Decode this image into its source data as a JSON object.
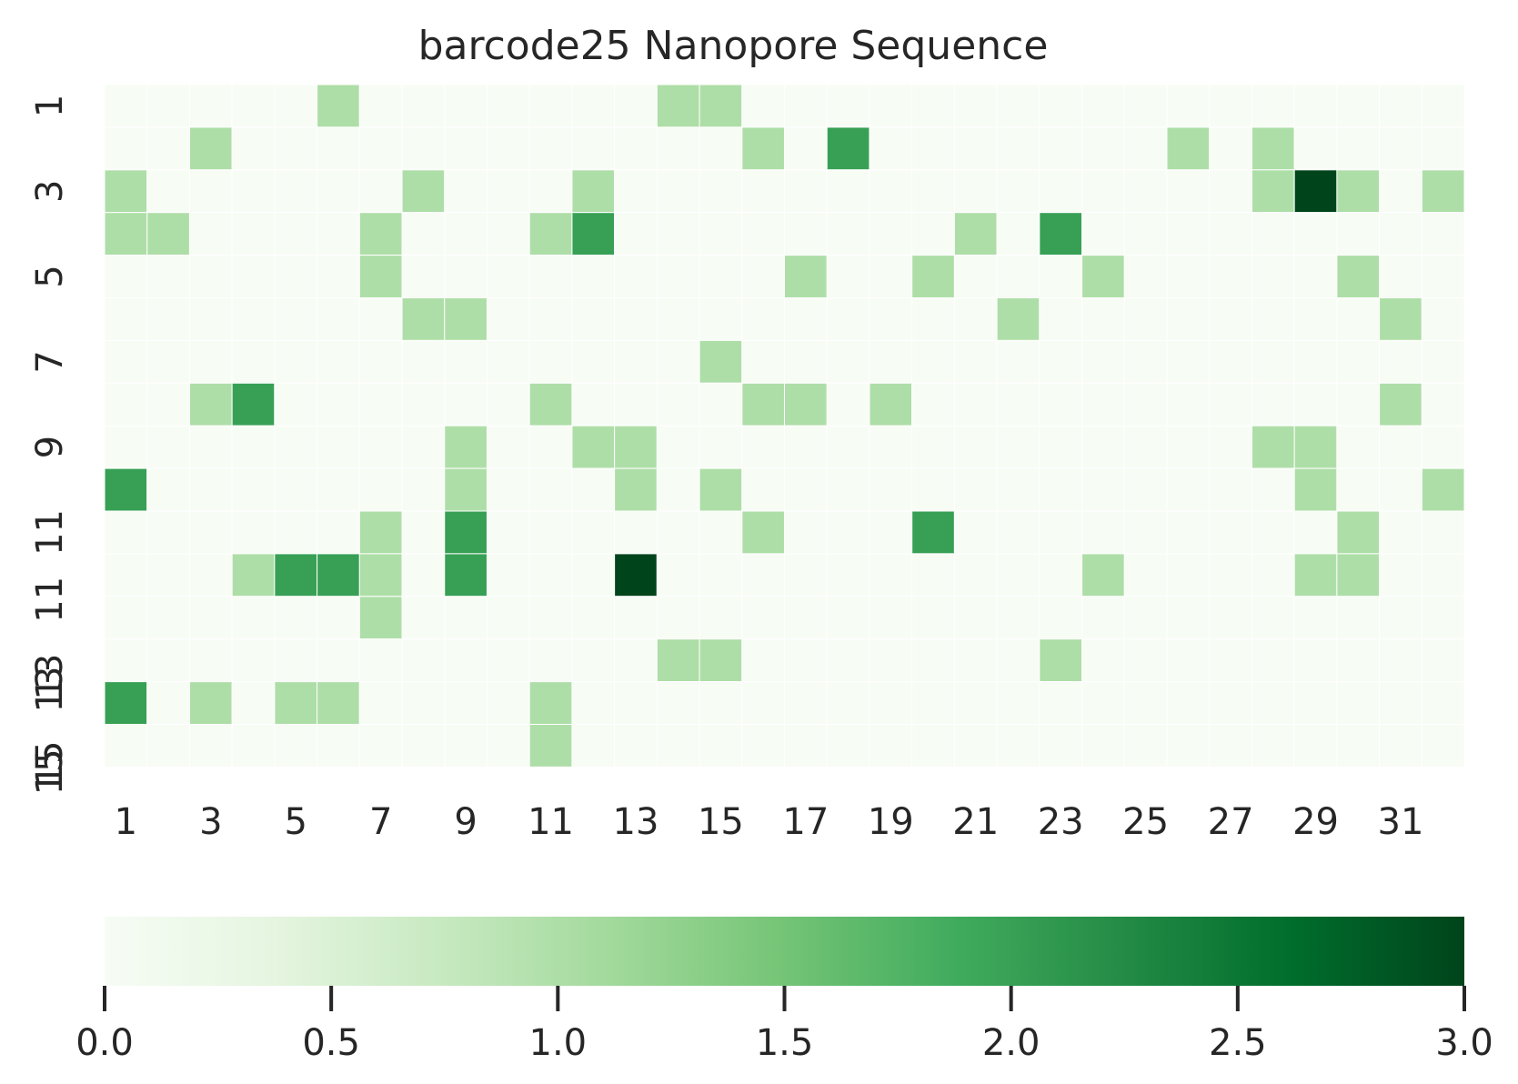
{
  "chart_data": {
    "type": "heatmap",
    "title": "barcode25 Nanopore Sequence",
    "xlabel": "",
    "ylabel": "",
    "x": [
      1,
      2,
      3,
      4,
      5,
      6,
      7,
      8,
      9,
      10,
      11,
      12,
      13,
      14,
      15,
      16,
      17,
      18,
      19,
      20,
      21,
      22,
      23,
      24,
      25,
      26,
      27,
      28,
      29,
      30,
      31,
      32
    ],
    "y": [
      1,
      2,
      3,
      4,
      5,
      6,
      7,
      8,
      9,
      10,
      11,
      12,
      13,
      14,
      15,
      16
    ],
    "x_tick_labels": [
      "1",
      "3",
      "5",
      "7",
      "9",
      "11",
      "13",
      "15",
      "17",
      "19",
      "21",
      "23",
      "25",
      "27",
      "29",
      "31"
    ],
    "y_tick_labels": [
      "1",
      "3",
      "5",
      "7",
      "9",
      "11",
      "11",
      "13",
      "13",
      "15",
      "15"
    ],
    "colorbar": {
      "colormap": "Greens",
      "range": [
        0,
        3
      ],
      "tick_labels": [
        "0.0",
        "0.5",
        "1.0",
        "1.5",
        "2.0",
        "2.5",
        "3.0"
      ],
      "orientation": "horizontal",
      "placement": "bottom"
    },
    "grid": false,
    "values": [
      [
        0,
        0,
        0,
        0,
        0,
        1,
        0,
        0,
        0,
        0,
        0,
        0,
        0,
        1,
        1,
        0,
        0,
        0,
        0,
        0,
        0,
        0,
        0,
        0,
        0,
        0,
        0,
        0,
        0,
        0,
        0,
        0
      ],
      [
        0,
        0,
        1,
        0,
        0,
        0,
        0,
        0,
        0,
        0,
        0,
        0,
        0,
        0,
        0,
        1,
        0,
        2,
        0,
        0,
        0,
        0,
        0,
        0,
        0,
        1,
        0,
        1,
        0,
        0,
        0,
        0
      ],
      [
        1,
        0,
        0,
        0,
        0,
        0,
        0,
        1,
        0,
        0,
        0,
        1,
        0,
        0,
        0,
        0,
        0,
        0,
        0,
        0,
        0,
        0,
        0,
        0,
        0,
        0,
        0,
        1,
        3,
        1,
        0,
        1
      ],
      [
        1,
        1,
        0,
        0,
        0,
        0,
        1,
        0,
        0,
        0,
        1,
        2,
        0,
        0,
        0,
        0,
        0,
        0,
        0,
        0,
        1,
        0,
        2,
        0,
        0,
        0,
        0,
        0,
        0,
        0,
        0,
        0
      ],
      [
        0,
        0,
        0,
        0,
        0,
        0,
        1,
        0,
        0,
        0,
        0,
        0,
        0,
        0,
        0,
        0,
        1,
        0,
        0,
        1,
        0,
        0,
        0,
        1,
        0,
        0,
        0,
        0,
        0,
        1,
        0,
        0
      ],
      [
        0,
        0,
        0,
        0,
        0,
        0,
        0,
        1,
        1,
        0,
        0,
        0,
        0,
        0,
        0,
        0,
        0,
        0,
        0,
        0,
        0,
        1,
        0,
        0,
        0,
        0,
        0,
        0,
        0,
        0,
        1,
        0
      ],
      [
        0,
        0,
        0,
        0,
        0,
        0,
        0,
        0,
        0,
        0,
        0,
        0,
        0,
        0,
        1,
        0,
        0,
        0,
        0,
        0,
        0,
        0,
        0,
        0,
        0,
        0,
        0,
        0,
        0,
        0,
        0,
        0
      ],
      [
        0,
        0,
        1,
        2,
        0,
        0,
        0,
        0,
        0,
        0,
        1,
        0,
        0,
        0,
        0,
        1,
        1,
        0,
        1,
        0,
        0,
        0,
        0,
        0,
        0,
        0,
        0,
        0,
        0,
        0,
        1,
        0
      ],
      [
        0,
        0,
        0,
        0,
        0,
        0,
        0,
        0,
        1,
        0,
        0,
        1,
        1,
        0,
        0,
        0,
        0,
        0,
        0,
        0,
        0,
        0,
        0,
        0,
        0,
        0,
        0,
        1,
        1,
        0,
        0,
        0
      ],
      [
        2,
        0,
        0,
        0,
        0,
        0,
        0,
        0,
        1,
        0,
        0,
        0,
        1,
        0,
        1,
        0,
        0,
        0,
        0,
        0,
        0,
        0,
        0,
        0,
        0,
        0,
        0,
        0,
        1,
        0,
        0,
        1
      ],
      [
        0,
        0,
        0,
        0,
        0,
        0,
        1,
        0,
        2,
        0,
        0,
        0,
        0,
        0,
        0,
        1,
        0,
        0,
        0,
        2,
        0,
        0,
        0,
        0,
        0,
        0,
        0,
        0,
        0,
        1,
        0,
        0
      ],
      [
        0,
        0,
        0,
        1,
        2,
        2,
        1,
        0,
        2,
        0,
        0,
        0,
        3,
        0,
        0,
        0,
        0,
        0,
        0,
        0,
        0,
        0,
        0,
        1,
        0,
        0,
        0,
        0,
        1,
        1,
        0,
        0
      ],
      [
        0,
        0,
        0,
        0,
        0,
        0,
        1,
        0,
        0,
        0,
        0,
        0,
        0,
        0,
        0,
        0,
        0,
        0,
        0,
        0,
        0,
        0,
        0,
        0,
        0,
        0,
        0,
        0,
        0,
        0,
        0,
        0
      ],
      [
        0,
        0,
        0,
        0,
        0,
        0,
        0,
        0,
        0,
        0,
        0,
        0,
        0,
        1,
        1,
        0,
        0,
        0,
        0,
        0,
        0,
        0,
        1,
        0,
        0,
        0,
        0,
        0,
        0,
        0,
        0,
        0
      ],
      [
        2,
        0,
        1,
        0,
        1,
        1,
        0,
        0,
        0,
        0,
        1,
        0,
        0,
        0,
        0,
        0,
        0,
        0,
        0,
        0,
        0,
        0,
        0,
        0,
        0,
        0,
        0,
        0,
        0,
        0,
        0,
        0
      ],
      [
        0,
        0,
        0,
        0,
        0,
        0,
        0,
        0,
        0,
        0,
        1,
        0,
        0,
        0,
        0,
        0,
        0,
        0,
        0,
        0,
        0,
        0,
        0,
        0,
        0,
        0,
        0,
        0,
        0,
        0,
        0,
        0
      ]
    ],
    "colors": {
      "v0": "#f7fcf5",
      "v1": "#aedea7",
      "v2": "#37a055",
      "v3": "#00441b"
    }
  }
}
